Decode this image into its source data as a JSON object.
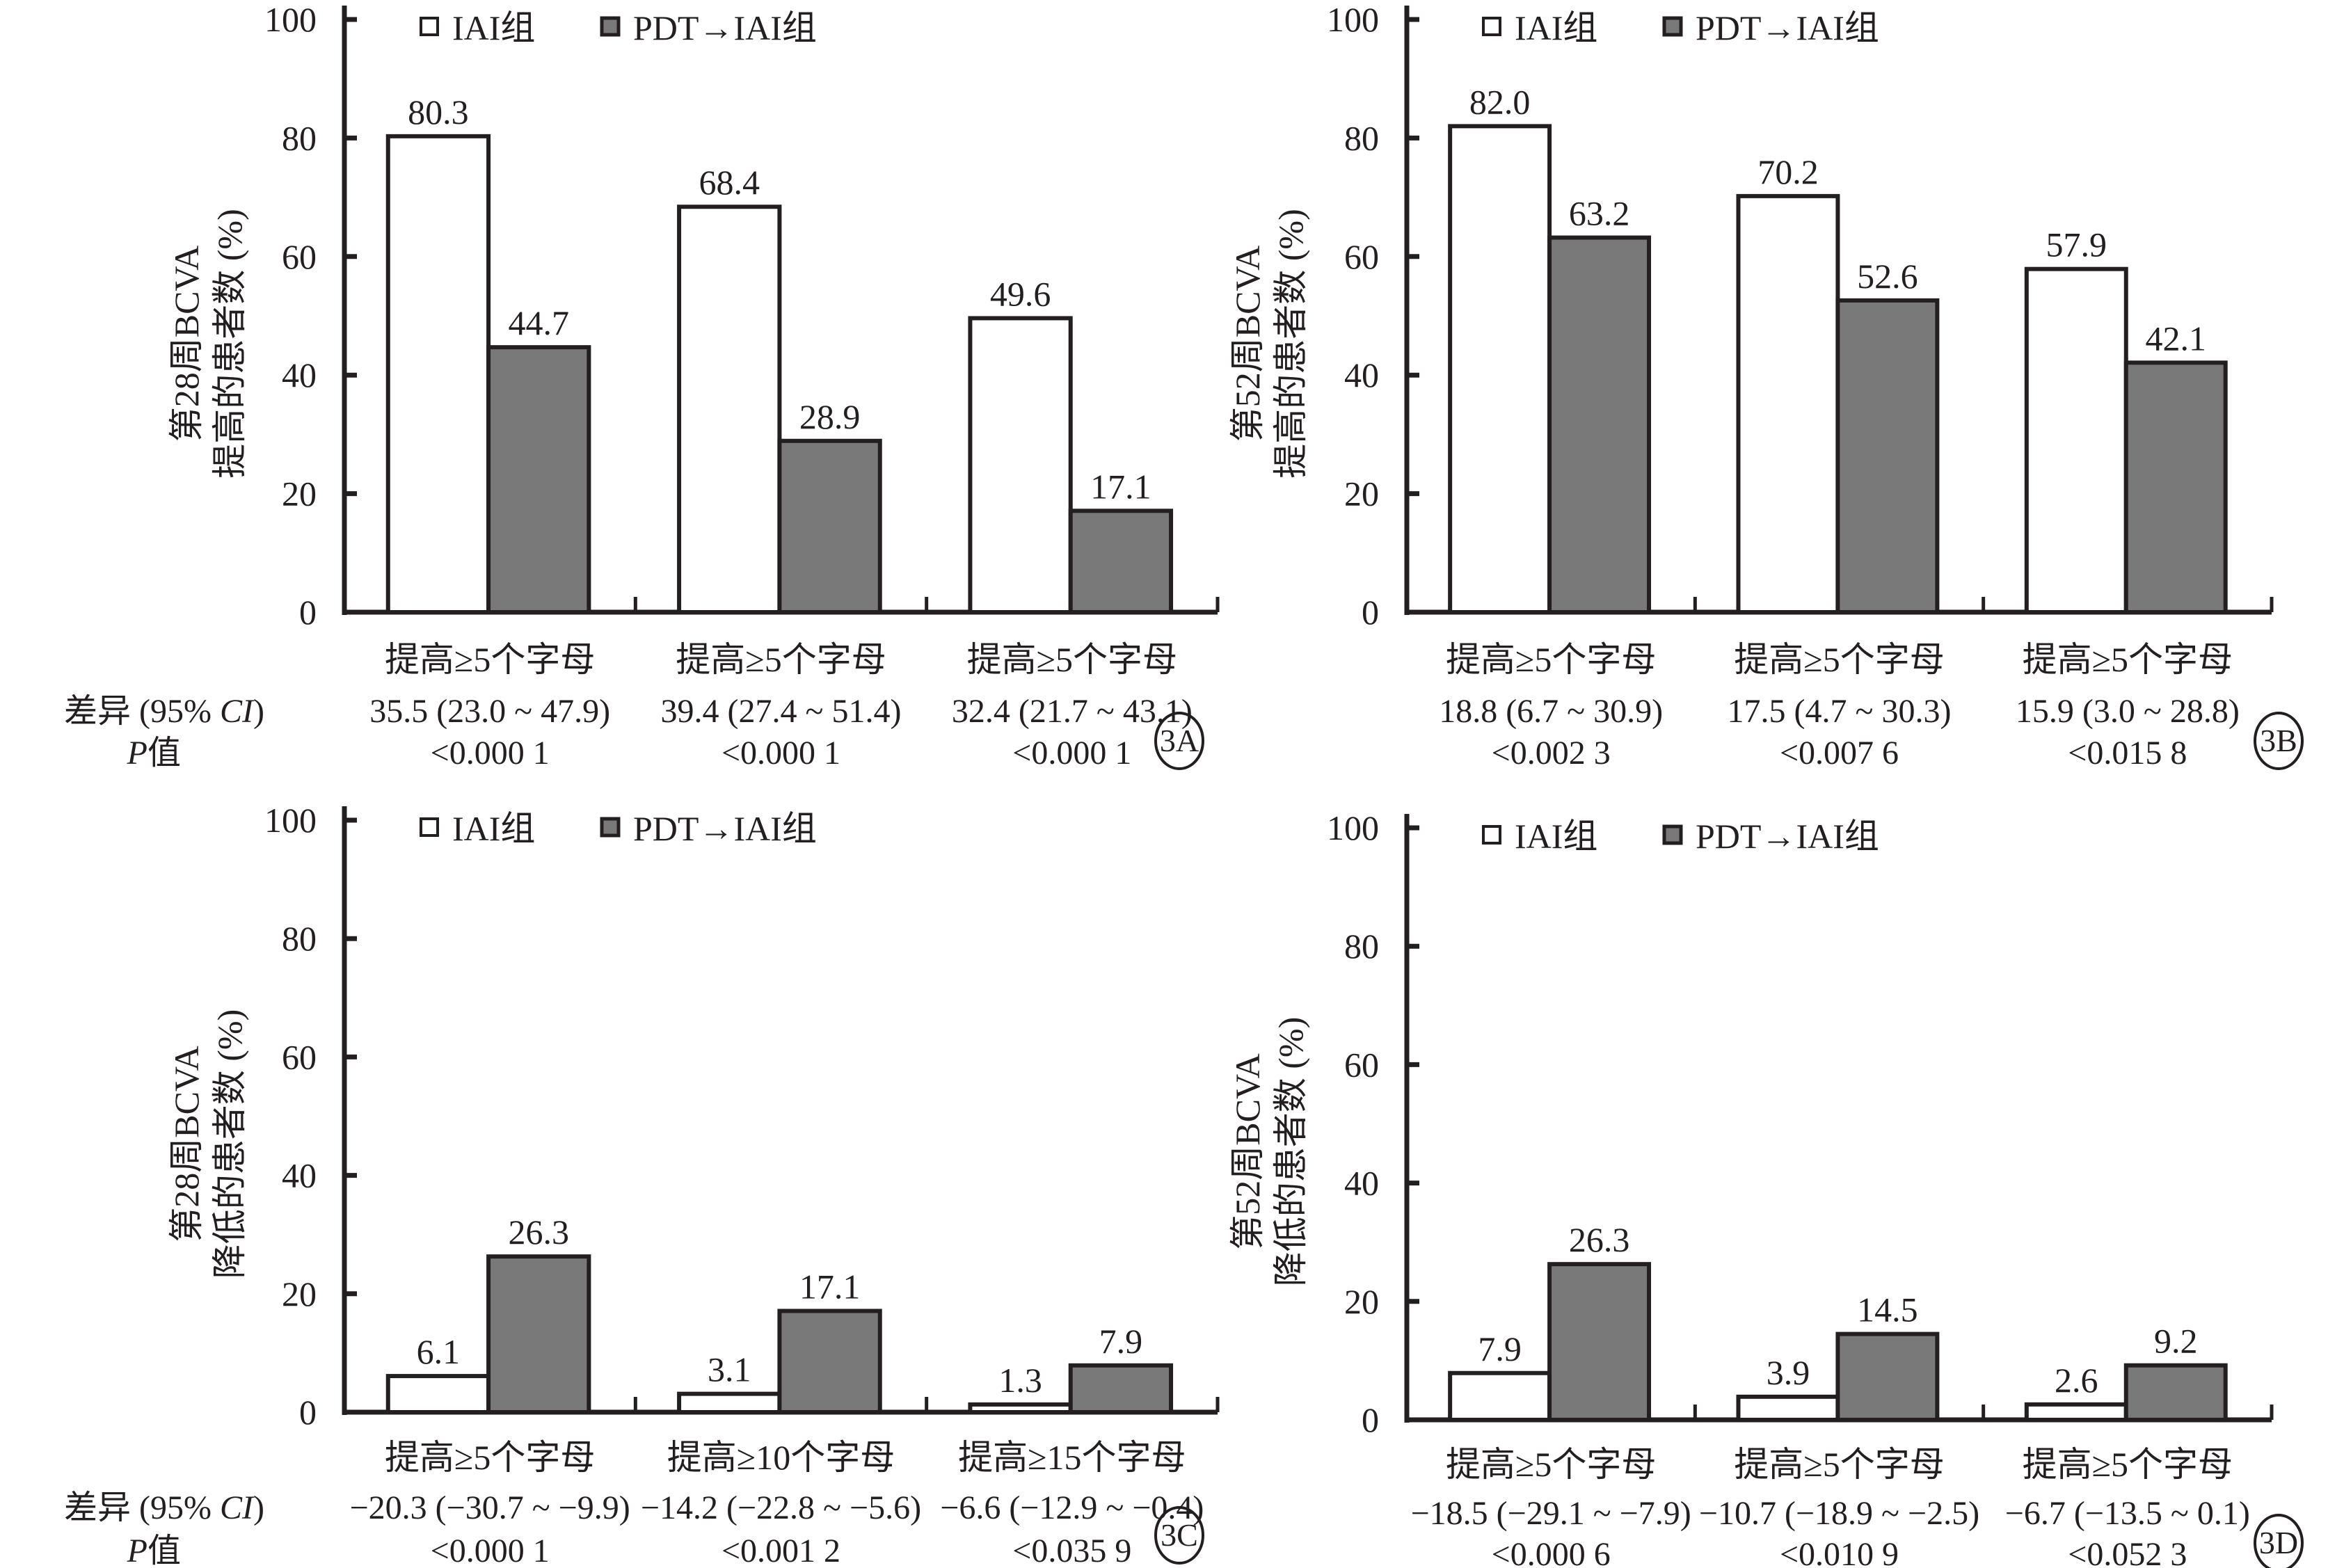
{
  "legend": {
    "series_a": "IAI组",
    "series_b": "PDT→IAI组"
  },
  "colors": {
    "series_a_fill": "#ffffff",
    "series_b_fill": "#7a797a",
    "stroke": "#231f20"
  },
  "row_labels": {
    "diff": "差异 (95% CI)",
    "diff_plain": "差异 (95% ",
    "diff_italic": "CI",
    "p": "P值",
    "p_italic": "P",
    "p_plain": "值"
  },
  "chart_data": [
    {
      "type": "bar",
      "panel": "3A",
      "ylabel_line1": "第28周BCVA",
      "ylabel_line2": "提高的患者数 (%)",
      "ylim": [
        0,
        100
      ],
      "yticks": [
        "0",
        "20",
        "40",
        "60",
        "80",
        "100"
      ],
      "categories": [
        "提高≥5个字母",
        "提高≥5个字母",
        "提高≥5个字母"
      ],
      "series": [
        {
          "name": "IAI组",
          "values": [
            80.3,
            68.4,
            49.6
          ],
          "labels": [
            "80.3",
            "68.4",
            "49.6"
          ]
        },
        {
          "name": "PDT→IAI组",
          "values": [
            44.7,
            28.9,
            17.1
          ],
          "labels": [
            "44.7",
            "28.9",
            "17.1"
          ]
        }
      ],
      "diff": [
        "35.5 (23.0 ~ 47.9)",
        "39.4 (27.4 ~ 51.4)",
        "32.4 (21.7 ~ 43.1)"
      ],
      "p": [
        "<0.000 1",
        "<0.000 1",
        "<0.000 1"
      ],
      "show_row_labels": true,
      "legend": "top-left",
      "grid": false
    },
    {
      "type": "bar",
      "panel": "3B",
      "ylabel_line1": "第52周BCVA",
      "ylabel_line2": "提高的患者数 (%)",
      "ylim": [
        0,
        100
      ],
      "yticks": [
        "0",
        "20",
        "40",
        "60",
        "80",
        "100"
      ],
      "categories": [
        "提高≥5个字母",
        "提高≥5个字母",
        "提高≥5个字母"
      ],
      "series": [
        {
          "name": "IAI组",
          "values": [
            82.0,
            70.2,
            57.9
          ],
          "labels": [
            "82.0",
            "70.2",
            "57.9"
          ]
        },
        {
          "name": "PDT→IAI组",
          "values": [
            63.2,
            52.6,
            42.1
          ],
          "labels": [
            "63.2",
            "52.6",
            "42.1"
          ]
        }
      ],
      "diff": [
        "18.8 (6.7 ~ 30.9)",
        "17.5 (4.7 ~ 30.3)",
        "15.9 (3.0 ~ 28.8)"
      ],
      "p": [
        "<0.002 3",
        "<0.007 6",
        "<0.015 8"
      ],
      "show_row_labels": false,
      "legend": "top-left",
      "grid": false
    },
    {
      "type": "bar",
      "panel": "3C",
      "ylabel_line1": "第28周BCVA",
      "ylabel_line2": "降低的患者数 (%)",
      "ylim": [
        0,
        100
      ],
      "yticks": [
        "0",
        "20",
        "40",
        "60",
        "80",
        "100"
      ],
      "categories": [
        "提高≥5个字母",
        "提高≥10个字母",
        "提高≥15个字母"
      ],
      "series": [
        {
          "name": "IAI组",
          "values": [
            6.1,
            3.1,
            1.3
          ],
          "labels": [
            "6.1",
            "3.1",
            "1.3"
          ]
        },
        {
          "name": "PDT→IAI组",
          "values": [
            26.3,
            17.1,
            7.9
          ],
          "labels": [
            "26.3",
            "17.1",
            "7.9"
          ]
        }
      ],
      "diff": [
        "−20.3 (−30.7 ~ −9.9)",
        "−14.2 (−22.8 ~ −5.6)",
        "−6.6 (−12.9 ~ −0.4)"
      ],
      "p": [
        "<0.000 1",
        "<0.001 2",
        "<0.035 9"
      ],
      "show_row_labels": true,
      "legend": "top-left",
      "grid": false
    },
    {
      "type": "bar",
      "panel": "3D",
      "ylabel_line1": "第52周BCVA",
      "ylabel_line2": "降低的患者数 (%)",
      "ylim": [
        0,
        100
      ],
      "yticks": [
        "0",
        "20",
        "40",
        "60",
        "80",
        "100"
      ],
      "categories": [
        "提高≥5个字母",
        "提高≥5个字母",
        "提高≥5个字母"
      ],
      "series": [
        {
          "name": "IAI组",
          "values": [
            7.9,
            3.9,
            2.6
          ],
          "labels": [
            "7.9",
            "3.9",
            "2.6"
          ]
        },
        {
          "name": "PDT→IAI组",
          "values": [
            26.3,
            14.5,
            9.2
          ],
          "labels": [
            "26.3",
            "14.5",
            "9.2"
          ]
        }
      ],
      "diff": [
        "−18.5 (−29.1 ~ −7.9)",
        "−10.7 (−18.9 ~ −2.5)",
        "−6.7 (−13.5 ~ 0.1)"
      ],
      "p": [
        "<0.000 6",
        "<0.010 9",
        "<0.052 3"
      ],
      "show_row_labels": false,
      "legend": "top-left",
      "grid": false
    }
  ]
}
